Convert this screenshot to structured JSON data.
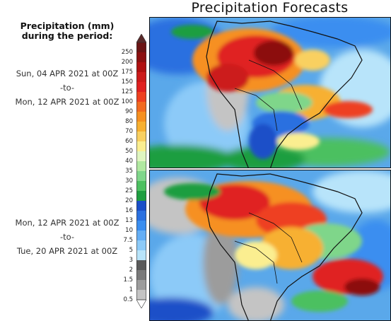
{
  "title": "Precipitation Forecasts",
  "legend": {
    "title_line1": "Precipitation (mm)",
    "title_line2": "during the period:",
    "levels": [
      "250",
      "200",
      "175",
      "150",
      "125",
      "100",
      "90",
      "80",
      "70",
      "60",
      "50",
      "40",
      "35",
      "30",
      "25",
      "20",
      "16",
      "13",
      "10",
      "7.5",
      "5",
      "3",
      "2",
      "1.5",
      "1",
      "0.5"
    ],
    "colors": [
      "#6b1414",
      "#8c1010",
      "#b01010",
      "#cc1a1a",
      "#e02020",
      "#ee4020",
      "#f26a20",
      "#f69020",
      "#f7b030",
      "#f9d060",
      "#fbee90",
      "#dff5c0",
      "#b0e8a0",
      "#7fd68a",
      "#4cc060",
      "#1e9e40",
      "#1a4fc8",
      "#2a70e0",
      "#3a8ef0",
      "#64aef5",
      "#8ccaf8",
      "#b8e4fa",
      "#5a5a5a",
      "#7a7a7a",
      "#9c9c9c",
      "#c4c4c4"
    ]
  },
  "periods": [
    {
      "start": "Sun, 04 APR 2021 at 00Z",
      "sep": "-to-",
      "end": "Mon, 12 APR 2021 at 00Z"
    },
    {
      "start": "Mon, 12 APR 2021 at 00Z",
      "sep": "-to-",
      "end": "Tue, 20 APR 2021 at 00Z"
    }
  ]
}
